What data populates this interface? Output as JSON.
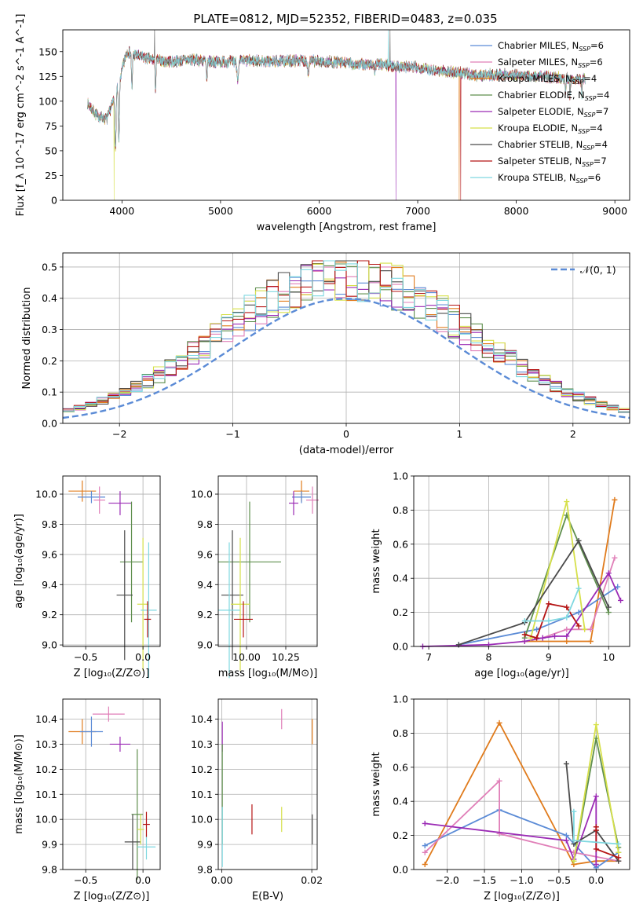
{
  "figure": {
    "title": "PLATE=0812, MJD=52352, FIBERID=0483, z=0.035"
  },
  "colors": {
    "Chabrier MILES": "#5b8bd6",
    "Salpeter MILES": "#e07fb8",
    "Kroupa MILES": "#e07b1c",
    "Chabrier ELODIE": "#5f8f4e",
    "Salpeter ELODIE": "#9b2bb5",
    "Kroupa ELODIE": "#d6e04a",
    "Chabrier STELIB": "#4a4a4a",
    "Salpeter STELIB": "#b51515",
    "Kroupa STELIB": "#7fd8e0"
  },
  "chart_data": [
    {
      "id": "spectrum",
      "type": "line",
      "xlabel": "wavelength [Angstrom, rest frame]",
      "ylabel": "Flux [f_λ 10^-17 erg cm^-2 s^-1 A^-1]",
      "xlim": [
        3400,
        9150
      ],
      "ylim": [
        0,
        172
      ],
      "xticks": [
        4000,
        5000,
        6000,
        7000,
        8000,
        9000
      ],
      "yticks": [
        0,
        25,
        50,
        75,
        100,
        125,
        150
      ],
      "grid": false,
      "legend": "top-right",
      "series": [
        {
          "name": "Chabrier MILES, N_SSP=6",
          "model": "Chabrier MILES"
        },
        {
          "name": "Salpeter MILES, N_SSP=6",
          "model": "Salpeter MILES"
        },
        {
          "name": "Kroupa MILES, N_SSP=4",
          "model": "Kroupa MILES"
        },
        {
          "name": "Chabrier ELODIE, N_SSP=4",
          "model": "Chabrier ELODIE"
        },
        {
          "name": "Salpeter ELODIE, N_SSP=7",
          "model": "Salpeter ELODIE"
        },
        {
          "name": "Kroupa ELODIE, N_SSP=4",
          "model": "Kroupa ELODIE"
        },
        {
          "name": "Chabrier STELIB, N_SSP=4",
          "model": "Chabrier STELIB"
        },
        {
          "name": "Salpeter STELIB, N_SSP=7",
          "model": "Salpeter STELIB"
        },
        {
          "name": "Kroupa STELIB, N_SSP=6",
          "model": "Kroupa STELIB"
        }
      ],
      "continuum": {
        "x": [
          3650,
          3750,
          3850,
          3950,
          4050,
          4150,
          4300,
          4500,
          4700,
          4900,
          5100,
          5300,
          5500,
          5800,
          6000,
          6200,
          6400,
          6600,
          6800,
          7000,
          7200,
          7400,
          7600,
          7800,
          8000,
          8200,
          8400,
          8600,
          8700
        ],
        "y": [
          98,
          85,
          82,
          112,
          150,
          146,
          142,
          140,
          142,
          140,
          140,
          141,
          140,
          141,
          140,
          139,
          137,
          137,
          135,
          134,
          131,
          129,
          126,
          127,
          126,
          125,
          124,
          123,
          122
        ]
      }
    },
    {
      "id": "residuals",
      "type": "histogram",
      "xlabel": "(data-model)/error",
      "ylabel": "Normed distribution",
      "xlim": [
        -2.5,
        2.5
      ],
      "ylim": [
        0,
        0.545
      ],
      "xticks": [
        -2,
        -1,
        0,
        1,
        2
      ],
      "yticks": [
        0.0,
        0.1,
        0.2,
        0.3,
        0.4,
        0.5
      ],
      "grid": true,
      "legend": "top-right",
      "reference": {
        "name": "𝒩(0, 1)",
        "mean": 0,
        "sigma": 1,
        "color": "#5b8bd6"
      },
      "bin_width": 0.1
    },
    {
      "id": "age_vs_Z",
      "type": "scatter",
      "xlabel": "Z [log₁₀(Z/Z⊙)]",
      "ylabel": "age  [log₁₀(age/yr)]",
      "xlim": [
        -0.7,
        0.15
      ],
      "ylim": [
        8.99,
        10.12
      ],
      "xticks": [
        -0.5,
        0.0
      ],
      "yticks": [
        9.0,
        9.2,
        9.4,
        9.6,
        9.8,
        10.0
      ],
      "grid": true,
      "points": [
        {
          "model": "Kroupa MILES",
          "x": -0.53,
          "xerr": 0.12,
          "y": 10.02,
          "yerr": 0.07
        },
        {
          "model": "Chabrier MILES",
          "x": -0.45,
          "xerr": 0.12,
          "y": 9.98,
          "yerr": 0.04
        },
        {
          "model": "Salpeter MILES",
          "x": -0.38,
          "xerr": 0.05,
          "y": 9.96,
          "yerr": 0.09
        },
        {
          "model": "Salpeter ELODIE",
          "x": -0.2,
          "xerr": 0.1,
          "y": 9.94,
          "yerr": 0.08
        },
        {
          "model": "Chabrier ELODIE",
          "x": -0.1,
          "xerr": 0.1,
          "y": 9.55,
          "yerr": 0.4
        },
        {
          "model": "Chabrier STELIB",
          "x": -0.16,
          "xerr": 0.07,
          "y": 9.33,
          "yerr": 0.43
        },
        {
          "model": "Kroupa ELODIE",
          "x": 0.0,
          "xerr": 0.05,
          "y": 9.27,
          "yerr": 0.44
        },
        {
          "model": "Kroupa STELIB",
          "x": 0.05,
          "xerr": 0.07,
          "y": 9.23,
          "yerr": 0.45
        },
        {
          "model": "Salpeter STELIB",
          "x": 0.04,
          "xerr": 0.03,
          "y": 9.17,
          "yerr": 0.12
        }
      ]
    },
    {
      "id": "age_vs_mass",
      "type": "scatter",
      "xlabel": "mass [log₁₀(M/M⊙)]",
      "ylabel": "",
      "xlim": [
        9.82,
        10.45
      ],
      "ylim": [
        8.99,
        10.12
      ],
      "xticks": [
        10.0,
        10.25
      ],
      "xticklabels": [
        "10.00",
        "10.25"
      ],
      "yticks": [
        9.0,
        9.2,
        9.4,
        9.6,
        9.8,
        10.0
      ],
      "grid": true,
      "points": [
        {
          "model": "Kroupa MILES",
          "x": 10.35,
          "xerr": 0.05,
          "y": 10.02,
          "yerr": 0.07
        },
        {
          "model": "Chabrier MILES",
          "x": 10.35,
          "xerr": 0.06,
          "y": 9.98,
          "yerr": 0.04
        },
        {
          "model": "Salpeter MILES",
          "x": 10.42,
          "xerr": 0.04,
          "y": 9.96,
          "yerr": 0.09
        },
        {
          "model": "Salpeter ELODIE",
          "x": 10.3,
          "xerr": 0.03,
          "y": 9.94,
          "yerr": 0.08
        },
        {
          "model": "Chabrier ELODIE",
          "x": 10.02,
          "xerr": 0.2,
          "y": 9.55,
          "yerr": 0.4
        },
        {
          "model": "Chabrier STELIB",
          "x": 9.91,
          "xerr": 0.07,
          "y": 9.33,
          "yerr": 0.43
        },
        {
          "model": "Kroupa ELODIE",
          "x": 9.96,
          "xerr": 0.06,
          "y": 9.27,
          "yerr": 0.44
        },
        {
          "model": "Kroupa STELIB",
          "x": 9.89,
          "xerr": 0.07,
          "y": 9.23,
          "yerr": 0.45
        },
        {
          "model": "Salpeter STELIB",
          "x": 9.98,
          "xerr": 0.06,
          "y": 9.17,
          "yerr": 0.12
        }
      ]
    },
    {
      "id": "weight_vs_age",
      "type": "line",
      "xlabel": "age  [log₁₀(age/yr)]",
      "ylabel": "mass weight",
      "xlim": [
        6.75,
        10.35
      ],
      "ylim": [
        0,
        1.0
      ],
      "xticks": [
        7,
        8,
        9,
        10
      ],
      "yticks": [
        0.0,
        0.2,
        0.4,
        0.6,
        0.8,
        1.0
      ],
      "grid": true,
      "series": [
        {
          "model": "Kroupa MILES",
          "x": [
            8.6,
            9.3,
            9.7,
            10.1
          ],
          "y": [
            0.03,
            0.03,
            0.03,
            0.86
          ]
        },
        {
          "model": "Chabrier MILES",
          "x": [
            7.5,
            8.8,
            9.5,
            10.15
          ],
          "y": [
            0.01,
            0.1,
            0.2,
            0.35
          ]
        },
        {
          "model": "Salpeter MILES",
          "x": [
            8.9,
            9.3,
            9.7,
            10.1
          ],
          "y": [
            0.05,
            0.1,
            0.1,
            0.52
          ]
        },
        {
          "model": "Chabrier ELODIE",
          "x": [
            8.6,
            9.3,
            10.0
          ],
          "y": [
            0.05,
            0.77,
            0.2
          ]
        },
        {
          "model": "Salpeter ELODIE",
          "x": [
            6.9,
            8.0,
            8.6,
            8.9,
            9.1,
            9.3,
            10.0,
            10.2
          ],
          "y": [
            0.0,
            0.01,
            0.03,
            0.05,
            0.06,
            0.06,
            0.43,
            0.27
          ]
        },
        {
          "model": "Kroupa ELODIE",
          "x": [
            8.7,
            9.3,
            9.6
          ],
          "y": [
            0.05,
            0.85,
            0.1
          ]
        },
        {
          "model": "Chabrier STELIB",
          "x": [
            7.5,
            8.6,
            9.5,
            10.0
          ],
          "y": [
            0.01,
            0.14,
            0.62,
            0.23
          ]
        },
        {
          "model": "Salpeter STELIB",
          "x": [
            8.6,
            8.8,
            9.0,
            9.3,
            9.5
          ],
          "y": [
            0.07,
            0.05,
            0.25,
            0.23,
            0.12
          ]
        },
        {
          "model": "Kroupa STELIB",
          "x": [
            8.6,
            9.0,
            9.3,
            9.5
          ],
          "y": [
            0.15,
            0.15,
            0.17,
            0.34
          ]
        }
      ]
    },
    {
      "id": "mass_vs_Z",
      "type": "scatter",
      "xlabel": "Z [log₁₀(Z/Z⊙)]",
      "ylabel": "mass [log₁₀(M/M⊙)]",
      "xlim": [
        -0.7,
        0.15
      ],
      "ylim": [
        9.8,
        10.48
      ],
      "xticks": [
        -0.5,
        0.0
      ],
      "yticks": [
        9.8,
        9.9,
        10.0,
        10.1,
        10.2,
        10.3,
        10.4
      ],
      "grid": true,
      "points": [
        {
          "model": "Kroupa MILES",
          "x": -0.53,
          "xerr": 0.12,
          "y": 10.35,
          "yerr": 0.05
        },
        {
          "model": "Chabrier MILES",
          "x": -0.45,
          "xerr": 0.1,
          "y": 10.35,
          "yerr": 0.06
        },
        {
          "model": "Salpeter MILES",
          "x": -0.3,
          "xerr": 0.14,
          "y": 10.42,
          "yerr": 0.03
        },
        {
          "model": "Salpeter ELODIE",
          "x": -0.2,
          "xerr": 0.09,
          "y": 10.3,
          "yerr": 0.03
        },
        {
          "model": "Chabrier ELODIE",
          "x": -0.05,
          "xerr": 0.05,
          "y": 10.02,
          "yerr": 0.26
        },
        {
          "model": "Chabrier STELIB",
          "x": -0.09,
          "xerr": 0.07,
          "y": 9.91,
          "yerr": 0.11
        },
        {
          "model": "Kroupa ELODIE",
          "x": -0.02,
          "xerr": 0.03,
          "y": 9.96,
          "yerr": 0.06
        },
        {
          "model": "Kroupa STELIB",
          "x": 0.03,
          "xerr": 0.08,
          "y": 9.89,
          "yerr": 0.05
        },
        {
          "model": "Salpeter STELIB",
          "x": 0.03,
          "xerr": 0.03,
          "y": 9.98,
          "yerr": 0.05
        }
      ]
    },
    {
      "id": "mass_vs_ebv",
      "type": "scatter",
      "xlabel": "E(B-V)",
      "ylabel": "",
      "xlim": [
        -0.0008,
        0.0212
      ],
      "ylim": [
        9.8,
        10.48
      ],
      "xticks": [
        0.0,
        0.02
      ],
      "xticklabels": [
        "0.00",
        "0.02"
      ],
      "yticks": [
        9.8,
        9.9,
        10.0,
        10.1,
        10.2,
        10.3,
        10.4
      ],
      "grid": true,
      "points": [
        {
          "model": "Kroupa MILES",
          "x": 0.0201,
          "xerr": 0.0,
          "y": 10.35,
          "yerr": 0.05
        },
        {
          "model": "Salpeter MILES",
          "x": 0.0133,
          "xerr": 0.0,
          "y": 10.4,
          "yerr": 0.04
        },
        {
          "model": "Salpeter ELODIE",
          "x": 0.0001,
          "xerr": 0.0,
          "y": 10.33,
          "yerr": 0.06
        },
        {
          "model": "Chabrier ELODIE",
          "x": 0.0001,
          "xerr": 0.0,
          "y": 10.1,
          "yerr": 0.2
        },
        {
          "model": "Salpeter STELIB",
          "x": 0.0067,
          "xerr": 0.0,
          "y": 10.0,
          "yerr": 0.06
        },
        {
          "model": "Kroupa ELODIE",
          "x": 0.0133,
          "xerr": 0.0,
          "y": 10.0,
          "yerr": 0.05
        },
        {
          "model": "Chabrier STELIB",
          "x": 0.0201,
          "xerr": 0.0,
          "y": 9.96,
          "yerr": 0.06
        },
        {
          "model": "Kroupa STELIB",
          "x": 0.0001,
          "xerr": 0.0,
          "y": 9.93,
          "yerr": 0.12
        }
      ]
    },
    {
      "id": "weight_vs_Z",
      "type": "line",
      "xlabel": "Z [log₁₀(Z/Z⊙)]",
      "ylabel": "mass weight",
      "xlim": [
        -2.45,
        0.45
      ],
      "ylim": [
        0,
        1.0
      ],
      "xticks": [
        -2.0,
        -1.5,
        -1.0,
        -0.5,
        0.0
      ],
      "yticks": [
        0.0,
        0.2,
        0.4,
        0.6,
        0.8,
        1.0
      ],
      "grid": true,
      "series": [
        {
          "model": "Kroupa MILES",
          "x": [
            -2.3,
            -1.3,
            -0.3,
            0.0,
            0.3
          ],
          "y": [
            0.03,
            0.86,
            0.03,
            0.05,
            0.05
          ]
        },
        {
          "model": "Chabrier MILES",
          "x": [
            -2.3,
            -1.3,
            -0.4,
            0.0,
            0.3
          ],
          "y": [
            0.14,
            0.35,
            0.2,
            0.01,
            0.1
          ]
        },
        {
          "model": "Salpeter MILES",
          "x": [
            -2.3,
            -1.3,
            -1.3,
            -0.3,
            0.3
          ],
          "y": [
            0.1,
            0.52,
            0.21,
            0.1,
            0.05
          ]
        },
        {
          "model": "Chabrier ELODIE",
          "x": [
            -0.3,
            0.0,
            0.3
          ],
          "y": [
            0.05,
            0.77,
            0.13
          ]
        },
        {
          "model": "Salpeter ELODIE",
          "x": [
            -2.3,
            -0.4,
            -0.3,
            0.0,
            0.0
          ],
          "y": [
            0.27,
            0.17,
            0.06,
            0.43,
            0.03
          ]
        },
        {
          "model": "Kroupa ELODIE",
          "x": [
            -0.3,
            0.0,
            0.3
          ],
          "y": [
            0.05,
            0.85,
            0.1
          ]
        },
        {
          "model": "Chabrier STELIB",
          "x": [
            -0.4,
            -0.3,
            0.0,
            0.3
          ],
          "y": [
            0.62,
            0.15,
            0.23,
            0.05
          ]
        },
        {
          "model": "Salpeter STELIB",
          "x": [
            0.0,
            0.0,
            0.0,
            0.3
          ],
          "y": [
            0.25,
            0.23,
            0.12,
            0.07
          ]
        },
        {
          "model": "Kroupa STELIB",
          "x": [
            -0.3,
            -0.3,
            0.3
          ],
          "y": [
            0.34,
            0.17,
            0.15
          ]
        }
      ]
    }
  ]
}
